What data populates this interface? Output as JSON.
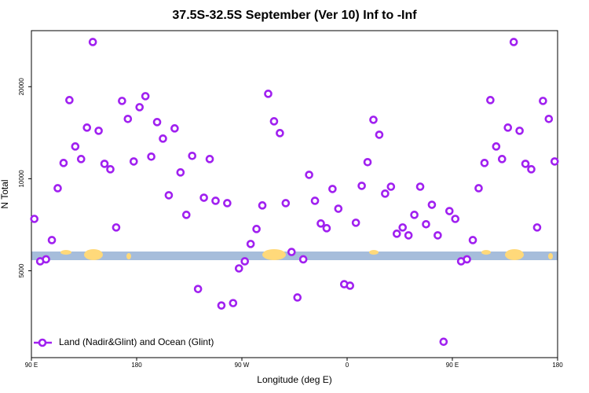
{
  "chart_data": {
    "type": "scatter",
    "title": "37.5S-32.5S September (Ver 10)   Inf to -Inf",
    "x_label": "Longitude (deg E)",
    "y_label": "N Total",
    "log_y": true,
    "legend": "bottom-left",
    "xlim": [
      90,
      540
    ],
    "xticks": [
      {
        "value": 90,
        "label": "90 E"
      },
      {
        "value": 180,
        "label": "180"
      },
      {
        "value": 270,
        "label": "90 W"
      },
      {
        "value": 360,
        "label": "0"
      },
      {
        "value": 450,
        "label": "90 E"
      },
      {
        "value": 540,
        "label": "180"
      }
    ],
    "ylim": [
      2600,
      30500
    ],
    "yticks": [
      5000,
      10000,
      20000
    ],
    "series": [
      {
        "name": "Land (Nadir&Glint) and Ocean (Glint)",
        "color": "#a020f0",
        "x": [
          92.5,
          97.5,
          102.5,
          107.5,
          112.5,
          117.5,
          122.5,
          127.5,
          132.5,
          137.5,
          142.5,
          147.5,
          152.5,
          157.5,
          162.5,
          167.5,
          172.5,
          177.5,
          182.5,
          187.5,
          192.5,
          197.5,
          202.5,
          207.5,
          212.5,
          217.5,
          222.5,
          227.5,
          232.5,
          237.5,
          242.5,
          247.5,
          252.5,
          257.5,
          262.5,
          267.5,
          272.5,
          277.5,
          282.5,
          287.5,
          292.5,
          297.5,
          302.5,
          307.5,
          312.5,
          317.5,
          322.5,
          327.5,
          332.5,
          337.5,
          342.5,
          347.5,
          352.5,
          357.5,
          362.5,
          367.5,
          372.5,
          377.5,
          382.5,
          387.5,
          392.5,
          397.5,
          402.5,
          407.5,
          412.5,
          417.5,
          422.5,
          427.5,
          432.5,
          437.5,
          442.5,
          447.5,
          452.5,
          457.5,
          462.5,
          467.5,
          472.5,
          477.5,
          482.5,
          487.5,
          492.5,
          497.5,
          502.5,
          507.5,
          512.5,
          517.5,
          522.5,
          527.5,
          532.5,
          537.5
        ],
        "values": [
          7390,
          5370,
          5450,
          6300,
          9310,
          11260,
          18080,
          12750,
          11600,
          14700,
          28000,
          14350,
          11190,
          10740,
          6930,
          17970,
          15690,
          11390,
          17140,
          18620,
          11810,
          15320,
          13530,
          8830,
          14610,
          10490,
          7620,
          11880,
          4360,
          8670,
          11600,
          8470,
          3850,
          8320,
          3920,
          5090,
          5370,
          6120,
          6850,
          8180,
          18960,
          15410,
          14100,
          8320,
          5760,
          4090,
          5450,
          10300,
          8470,
          7140,
          6890,
          9260,
          7980,
          4520,
          4470,
          7180,
          9480,
          11330,
          15590,
          13930,
          8940,
          9420,
          6610,
          6930,
          6530,
          7620,
          9420,
          7100,
          8220,
          6530,
          2930,
          7840,
          7390,
          5370,
          5450,
          6300,
          9310,
          11260,
          18080,
          12750,
          11600,
          14700,
          28000,
          14350,
          11190,
          10740,
          6930,
          17970,
          15690,
          11390
        ]
      }
    ]
  }
}
